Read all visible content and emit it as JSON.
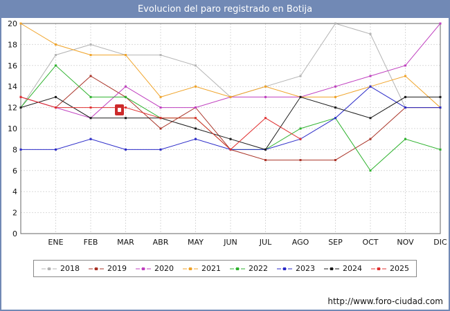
{
  "title": "Evolucion del paro registrado en Botija",
  "footer_url": "http://www.foro-ciudad.com",
  "colors": {
    "frame_border": "#7189b5",
    "title_bar_bg": "#7189b5",
    "title_text": "#ffffff",
    "plot_border": "#666666",
    "grid": "#d9d9d9",
    "axis_text": "#111111",
    "legend_border": "#888888",
    "watermark_red": "#cc2a2a"
  },
  "chart_data": {
    "type": "line",
    "title": "Evolucion del paro registrado en Botija",
    "categories": [
      "ENE",
      "FEB",
      "MAR",
      "ABR",
      "MAY",
      "JUN",
      "JUL",
      "AGO",
      "SEP",
      "OCT",
      "NOV",
      "DIC"
    ],
    "first_point_on_left_axis": true,
    "xlabel": "",
    "ylabel": "",
    "ylim": [
      0,
      20
    ],
    "ytick_step": 2,
    "grid": true,
    "legend_position": "bottom",
    "series": [
      {
        "name": "2018",
        "color": "#b3b3b3",
        "values": [
          12,
          17,
          18,
          17,
          17,
          16,
          13,
          14,
          15,
          20,
          19,
          12,
          12
        ]
      },
      {
        "name": "2019",
        "color": "#a93226",
        "values": [
          13,
          12,
          15,
          13,
          10,
          12,
          8,
          7,
          7,
          7,
          9,
          12,
          12
        ]
      },
      {
        "name": "2020",
        "color": "#bf3fbf",
        "values": [
          13,
          12,
          11,
          14,
          12,
          12,
          13,
          13,
          13,
          14,
          15,
          16,
          20
        ]
      },
      {
        "name": "2021",
        "color": "#f0a328",
        "values": [
          20,
          18,
          17,
          17,
          13,
          14,
          13,
          14,
          13,
          13,
          14,
          15,
          12
        ]
      },
      {
        "name": "2022",
        "color": "#2db22d",
        "values": [
          12,
          16,
          13,
          13,
          11,
          11,
          8,
          8,
          10,
          11,
          6,
          9,
          8
        ]
      },
      {
        "name": "2023",
        "color": "#2a2ac8",
        "values": [
          8,
          8,
          9,
          8,
          8,
          9,
          8,
          8,
          9,
          11,
          14,
          12,
          12
        ]
      },
      {
        "name": "2024",
        "color": "#1a1a1a",
        "values": [
          12,
          13,
          11,
          11,
          11,
          10,
          9,
          8,
          13,
          12,
          11,
          13,
          13
        ]
      },
      {
        "name": "2025",
        "color": "#e03030",
        "values": [
          13,
          12,
          12,
          12,
          11,
          11,
          8,
          11,
          9
        ]
      }
    ]
  }
}
